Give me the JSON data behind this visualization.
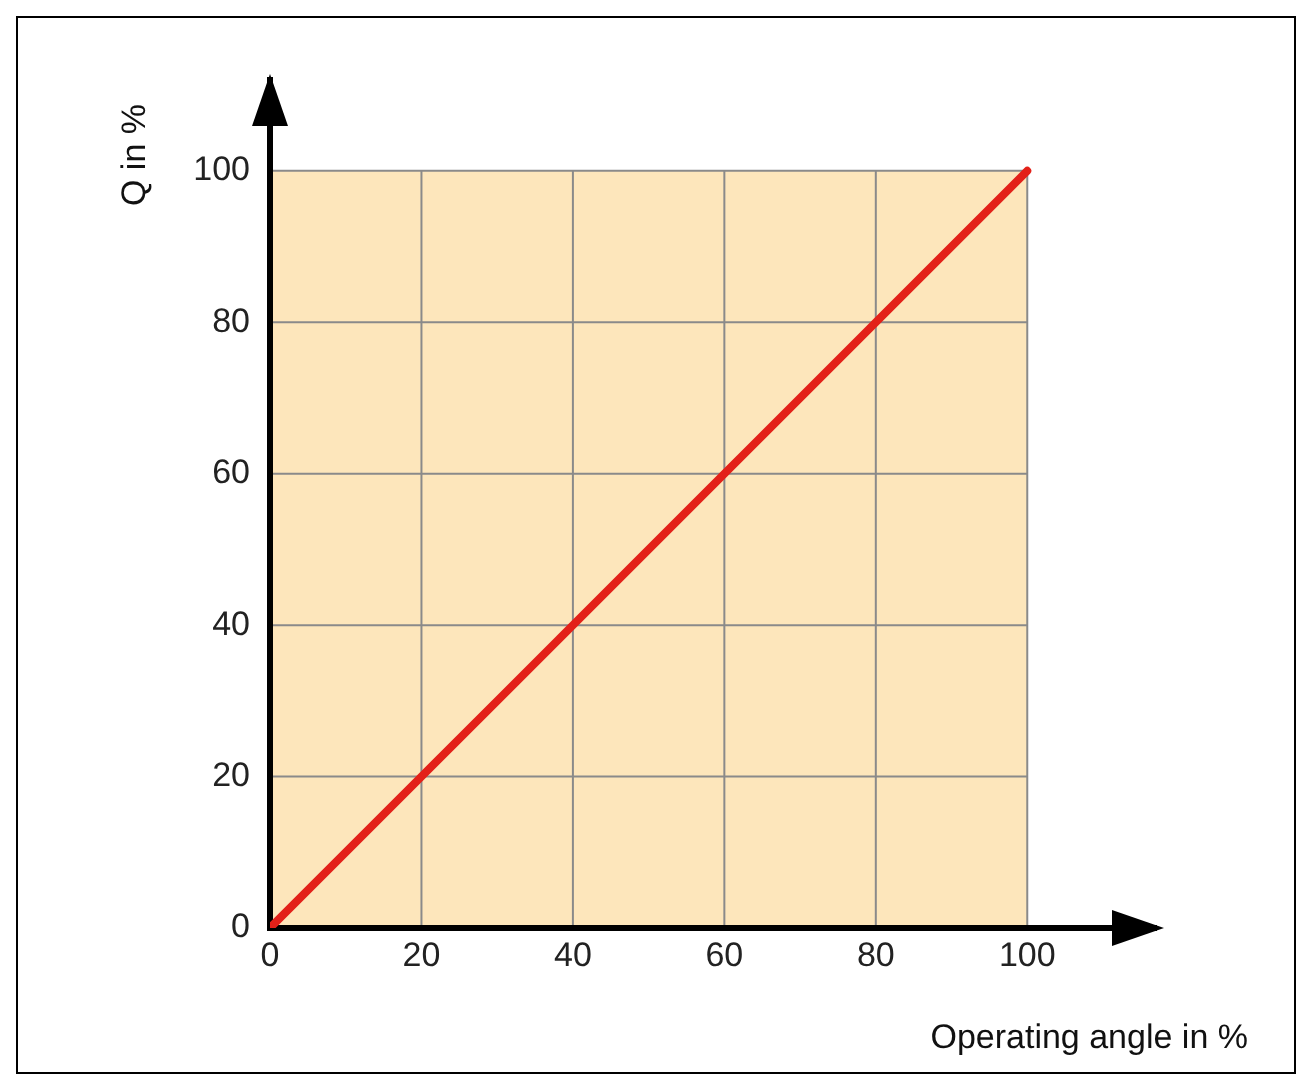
{
  "chart_data": {
    "type": "line",
    "xlabel": "Operating angle in %",
    "ylabel": "Q in %",
    "x": [
      0,
      100
    ],
    "series": [
      {
        "color": "#e32119",
        "values": [
          0,
          100
        ]
      }
    ],
    "xlim": [
      0,
      117
    ],
    "ylim": [
      0,
      112
    ],
    "xticks": [
      0,
      20,
      40,
      60,
      80,
      100
    ],
    "yticks": [
      0,
      20,
      40,
      60,
      80,
      100
    ],
    "grid": true,
    "marker": "none",
    "line_style": "solid"
  }
}
